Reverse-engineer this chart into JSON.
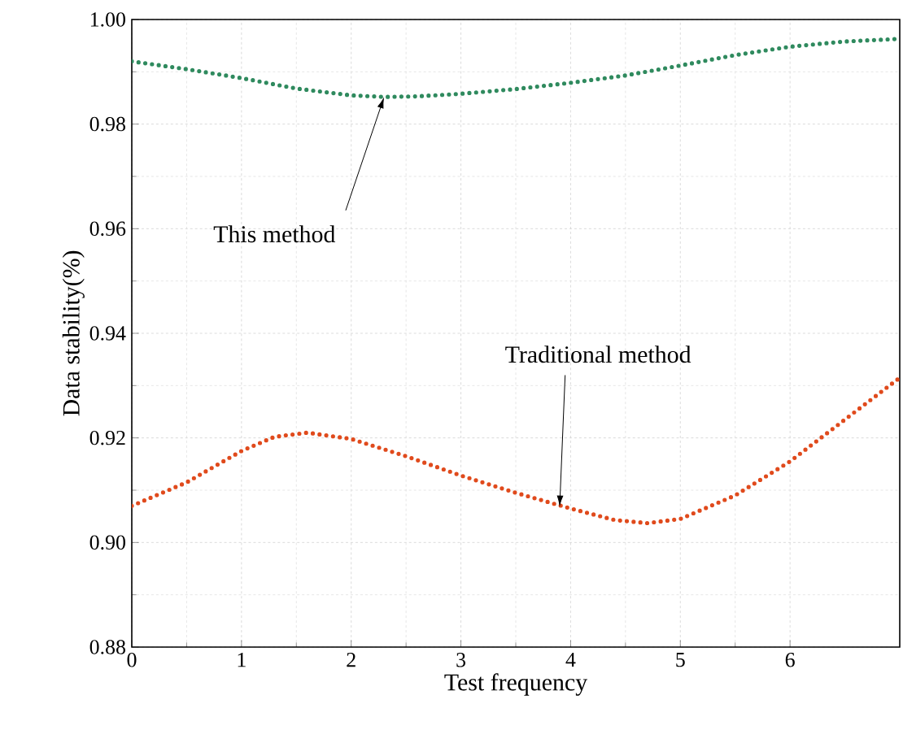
{
  "chart_data": {
    "type": "line",
    "xlabel": "Test frequency",
    "ylabel": "Data stability(%)",
    "xlim": [
      0,
      7
    ],
    "ylim": [
      0.88,
      1.0
    ],
    "xticks": [
      0,
      1,
      2,
      3,
      4,
      5,
      6
    ],
    "yticks": [
      {
        "value": 0.88,
        "label": "0.88"
      },
      {
        "value": 0.9,
        "label": "0.90"
      },
      {
        "value": 0.92,
        "label": "0.92"
      },
      {
        "value": 0.94,
        "label": "0.94"
      },
      {
        "value": 0.96,
        "label": "0.96"
      },
      {
        "value": 0.98,
        "label": "0.98"
      },
      {
        "value": 1.0,
        "label": "1.00"
      }
    ],
    "grid": true,
    "marker": "none",
    "line_style": "dotted",
    "series": [
      {
        "color": "#2f8a5e",
        "x": [
          0,
          0.5,
          1,
          1.5,
          2,
          2.3,
          2.6,
          3,
          3.5,
          4,
          4.5,
          5,
          5.5,
          6,
          6.5,
          7
        ],
        "values": [
          0.992,
          0.9905,
          0.9888,
          0.9868,
          0.9855,
          0.9852,
          0.9853,
          0.9858,
          0.9867,
          0.9879,
          0.9893,
          0.9912,
          0.9932,
          0.9948,
          0.9958,
          0.9963
        ]
      },
      {
        "color": "#e04a1c",
        "x": [
          0,
          0.5,
          1,
          1.3,
          1.6,
          2,
          2.5,
          3,
          3.5,
          4,
          4.4,
          4.7,
          5,
          5.5,
          6,
          6.5,
          7
        ],
        "values": [
          0.907,
          0.9115,
          0.9175,
          0.9202,
          0.921,
          0.9198,
          0.9165,
          0.9128,
          0.9095,
          0.9065,
          0.9043,
          0.9037,
          0.9045,
          0.909,
          0.9155,
          0.9235,
          0.9315
        ]
      }
    ],
    "annotations": [
      {
        "text": "This method",
        "x": 2.3,
        "y": 0.9852
      },
      {
        "text": "Traditional method",
        "x": 3.9,
        "y": 0.9068
      }
    ]
  }
}
